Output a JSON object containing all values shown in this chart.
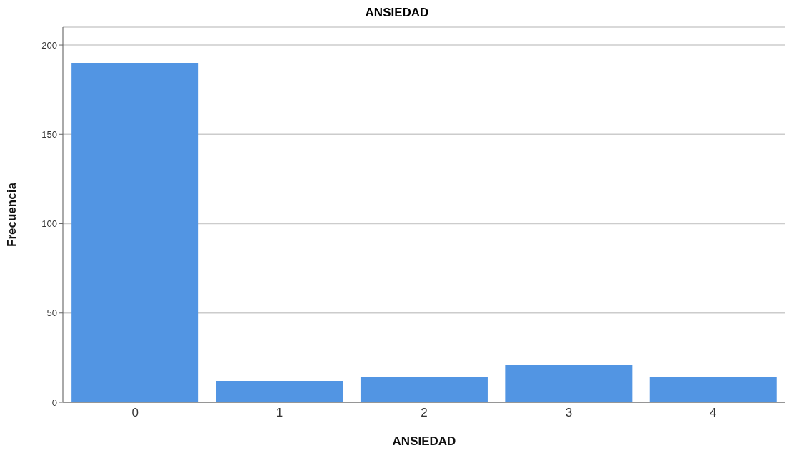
{
  "chart_data": {
    "type": "bar",
    "title": "ANSIEDAD",
    "xlabel": "ANSIEDAD",
    "ylabel": "Frecuencia",
    "categories": [
      "0",
      "1",
      "2",
      "3",
      "4"
    ],
    "values": [
      190,
      12,
      14,
      21,
      14
    ],
    "color": "#5295e3",
    "ylim": [
      0,
      210
    ],
    "yticks": [
      0,
      50,
      100,
      150,
      200
    ],
    "grid": "y"
  }
}
